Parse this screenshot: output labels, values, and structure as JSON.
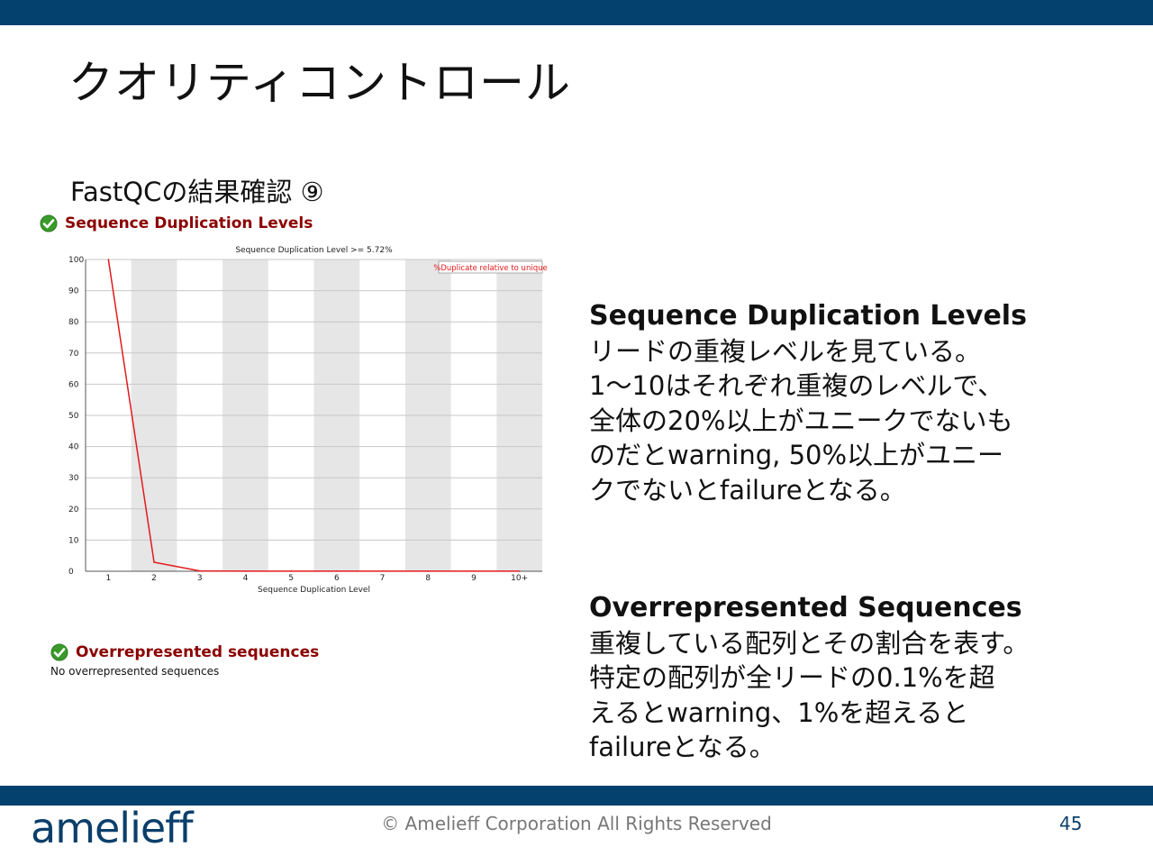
{
  "slide": {
    "title": "クオリティコントロール",
    "subtitle": "FastQCの結果確認 ⑨",
    "page_number": "45",
    "copyright": "© Amelieff Corporation All Rights Reserved",
    "logo": "amelieff",
    "colors": {
      "bar": "#05416e",
      "heading_red": "#8b0000",
      "line_red": "#e31a1c",
      "stripe": "#e6e6e6",
      "check_green": "#3a9a2a"
    }
  },
  "module1": {
    "heading": "Sequence Duplication Levels",
    "status_icon": "check-icon"
  },
  "module2": {
    "heading": "Overrepresented sequences",
    "status_icon": "check-icon",
    "message": "No overrepresented sequences"
  },
  "chart_data": {
    "type": "line",
    "title": "Sequence Duplication Level >= 5.72%",
    "xlabel": "Sequence Duplication Level",
    "ylabel": "",
    "categories": [
      "1",
      "2",
      "3",
      "4",
      "5",
      "6",
      "7",
      "8",
      "9",
      "10+"
    ],
    "series": [
      {
        "name": "%Duplicate relative to unique",
        "values": [
          100,
          2.9,
          0.1,
          0.05,
          0.05,
          0.05,
          0.05,
          0.05,
          0.05,
          0.05
        ]
      }
    ],
    "yticks": [
      "0",
      "10",
      "20",
      "30",
      "40",
      "50",
      "60",
      "70",
      "80",
      "90",
      "100"
    ],
    "ylim": [
      0,
      100
    ],
    "grid": true,
    "legend": "top-right"
  },
  "explanations": {
    "dup": {
      "heading": "Sequence Duplication Levels",
      "lines": [
        "リードの重複レベルを見ている。",
        "1～10はそれぞれ重複のレベルで、",
        "全体の20%以上がユニークでないも",
        "のだとwarning, 50%以上がユニー",
        "クでないとfailureとなる。"
      ]
    },
    "over": {
      "heading": "Overrepresented Sequences",
      "lines": [
        "重複している配列とその割合を表す。",
        "特定の配列が全リードの0.1%を超",
        "えるとwarning、1%を超えると",
        "failureとなる。"
      ]
    }
  }
}
